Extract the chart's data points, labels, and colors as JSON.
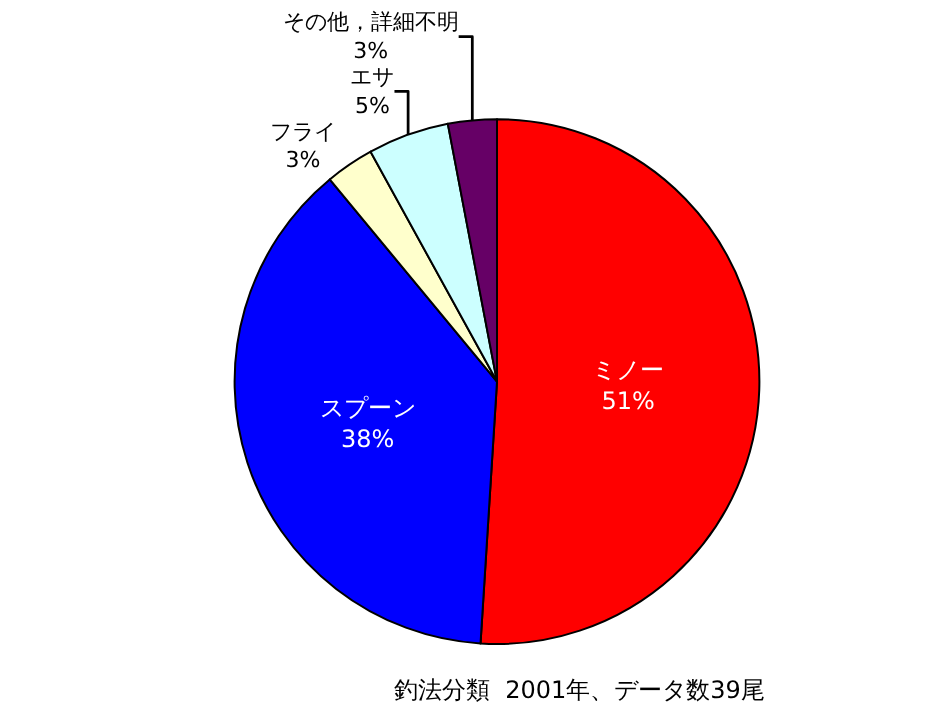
{
  "chart_data": {
    "type": "pie",
    "title": "釣法分類  2001年、データ数39尾",
    "categories": [
      "ミノー",
      "スプーン",
      "フライ",
      "エサ",
      "その他，詳細不明"
    ],
    "values": [
      51,
      38,
      3,
      5,
      3
    ],
    "value_labels": [
      "51%",
      "38%",
      "3%",
      "5%",
      "3%"
    ],
    "colors": [
      "#ff0000",
      "#0000ff",
      "#ffffcc",
      "#ccffff",
      "#660066"
    ],
    "legend": false
  }
}
